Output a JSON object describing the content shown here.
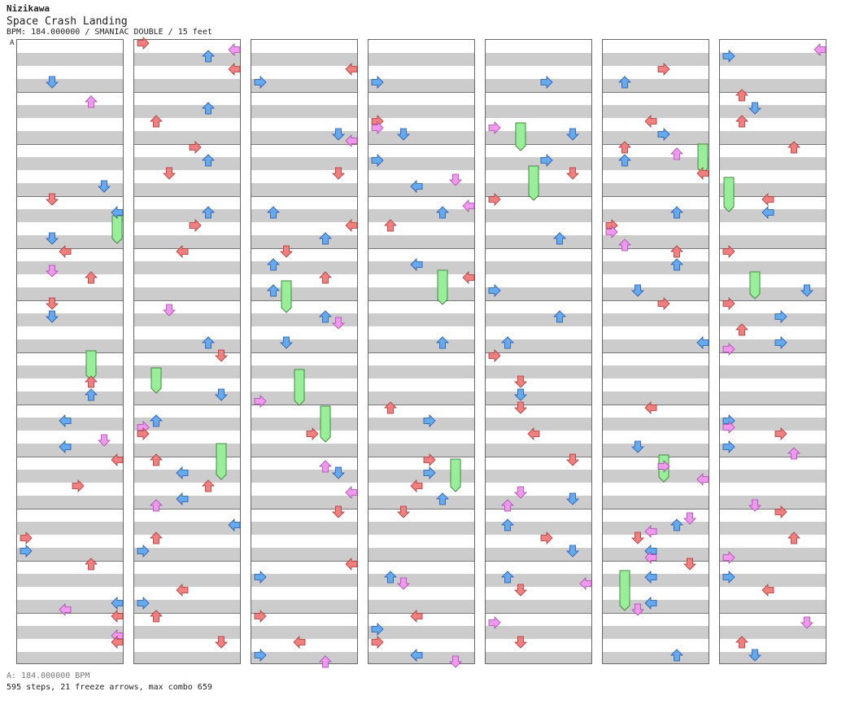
{
  "header": {
    "author": "Nizikawa",
    "song_title": "Space Crash Landing",
    "chart_info": "BPM: 184.000000 / SMANIAC DOUBLE / 15 feet",
    "section_marker": "A"
  },
  "footer": {
    "bpm_line": "A: 184.000000 BPM",
    "stats_line": "595 steps, 21 freeze arrows, max combo 659"
  },
  "colors": {
    "quarter": "#f08080",
    "eighth": "#66aaee",
    "sixteenth": "#ee99ee",
    "freeze": "#99ee99"
  },
  "icons": {
    "arrow": "arrow-icon",
    "freeze": "freeze-arrow-icon"
  }
}
